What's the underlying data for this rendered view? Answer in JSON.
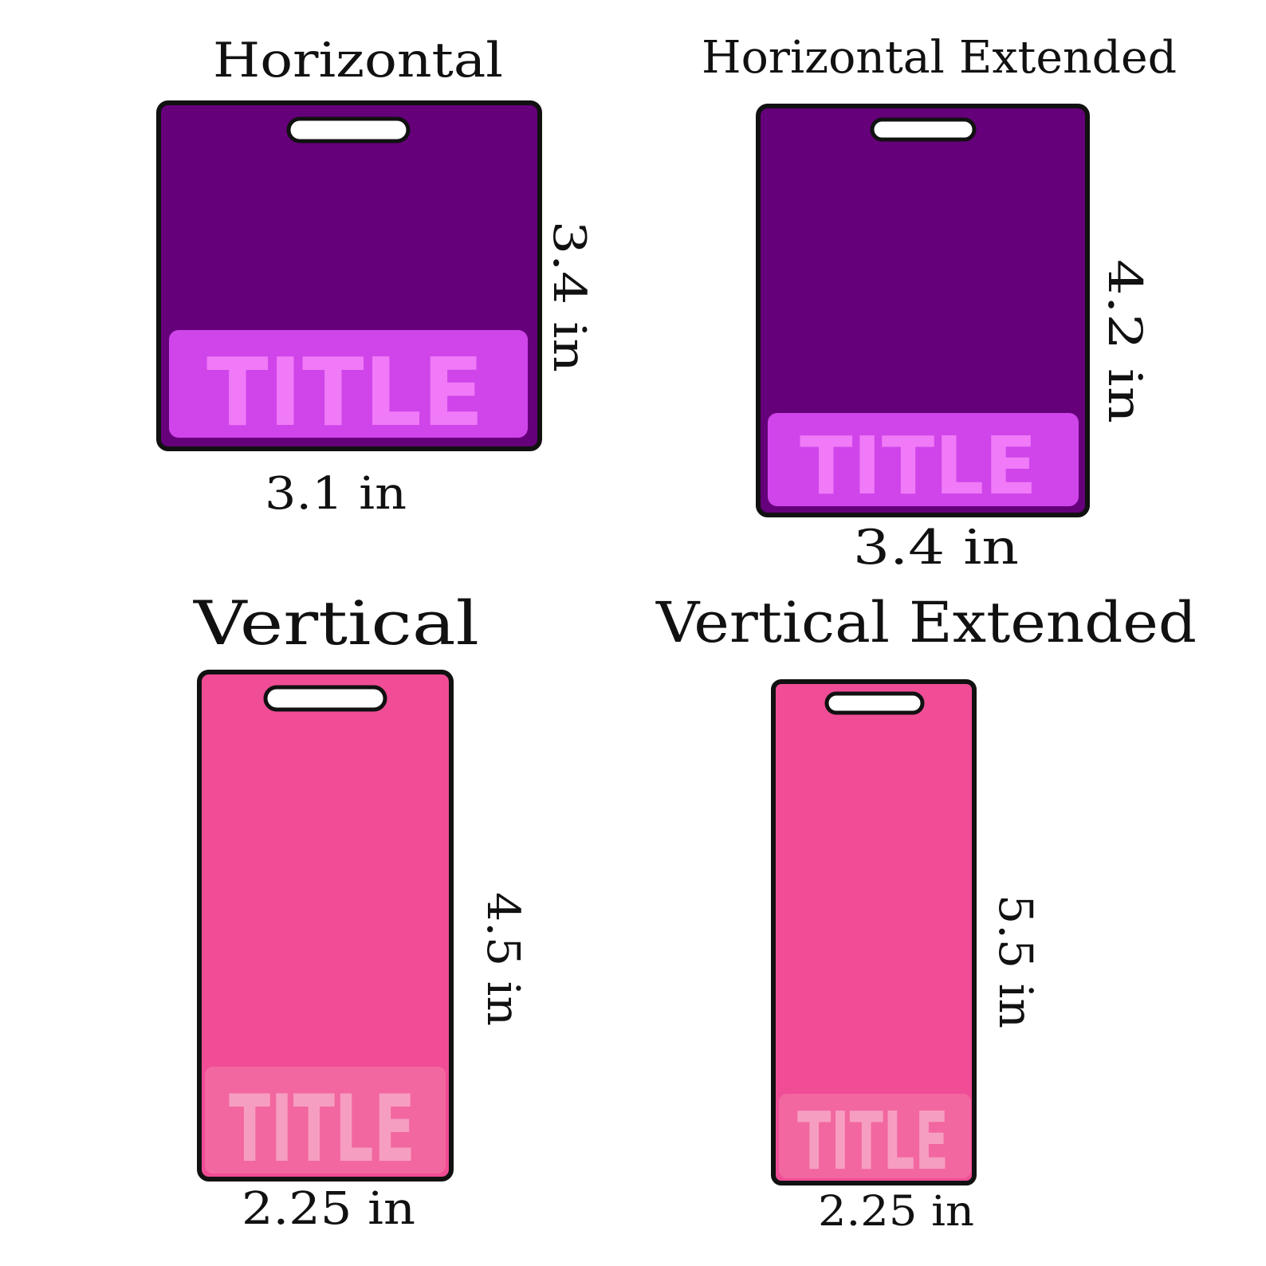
{
  "colors": {
    "purple_card": "#65007a",
    "purple_panel": "#cf45ea",
    "purple_title": "#f07af7",
    "pink_card": "#f04d96",
    "pink_panel": "#f2679f",
    "pink_title": "#f69ec1",
    "outline": "#111111",
    "slot_fill": "#ffffff"
  },
  "badges": [
    {
      "heading": "Horizontal",
      "width_label": "3.1 in",
      "height_label": "3.4 in",
      "panel_title": "TITLE",
      "color_scheme": "purple"
    },
    {
      "heading": "Horizontal Extended",
      "width_label": "3.4 in",
      "height_label": "4.2 in",
      "panel_title": "TITLE",
      "color_scheme": "purple"
    },
    {
      "heading": "Vertical",
      "width_label": "2.25 in",
      "height_label": "4.5 in",
      "panel_title": "TITLE",
      "color_scheme": "pink"
    },
    {
      "heading": "Vertical Extended",
      "width_label": "2.25 in",
      "height_label": "5.5 in",
      "panel_title": "TITLE",
      "color_scheme": "pink"
    }
  ]
}
